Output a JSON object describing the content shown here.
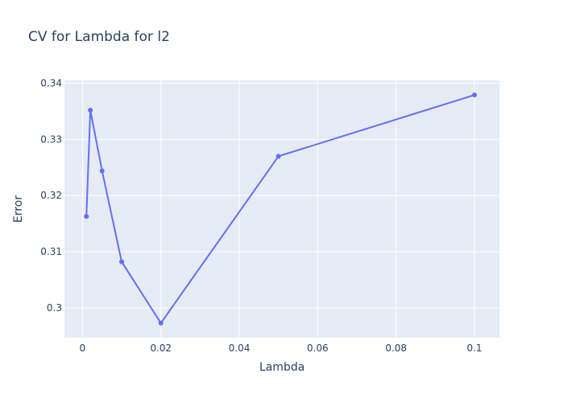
{
  "chart_data": {
    "type": "line",
    "title": "CV for Lambda for l2",
    "xlabel": "Lambda",
    "ylabel": "Error",
    "x": [
      0.001,
      0.002,
      0.005,
      0.01,
      0.02,
      0.05,
      0.1
    ],
    "series": [
      {
        "name": "",
        "values": [
          0.3163,
          0.3352,
          0.3244,
          0.3082,
          0.2973,
          0.327,
          0.3379
        ]
      }
    ],
    "xlim": [
      -0.0046,
      0.1064
    ],
    "ylim": [
      0.2947,
      0.3405
    ],
    "xticks": [
      0,
      0.02,
      0.04,
      0.06,
      0.08,
      0.1
    ],
    "xtick_labels": [
      "0",
      "0.02",
      "0.04",
      "0.06",
      "0.08",
      "0.1"
    ],
    "yticks": [
      0.3,
      0.31,
      0.32,
      0.33,
      0.34
    ],
    "ytick_labels": [
      "0.3",
      "0.31",
      "0.32",
      "0.33",
      "0.34"
    ],
    "grid": true,
    "markers": true,
    "colors": {
      "line": "#636efa",
      "plot_background": "#e5ecf6",
      "grid": "#ffffff",
      "text": "#2a3f5f"
    }
  }
}
